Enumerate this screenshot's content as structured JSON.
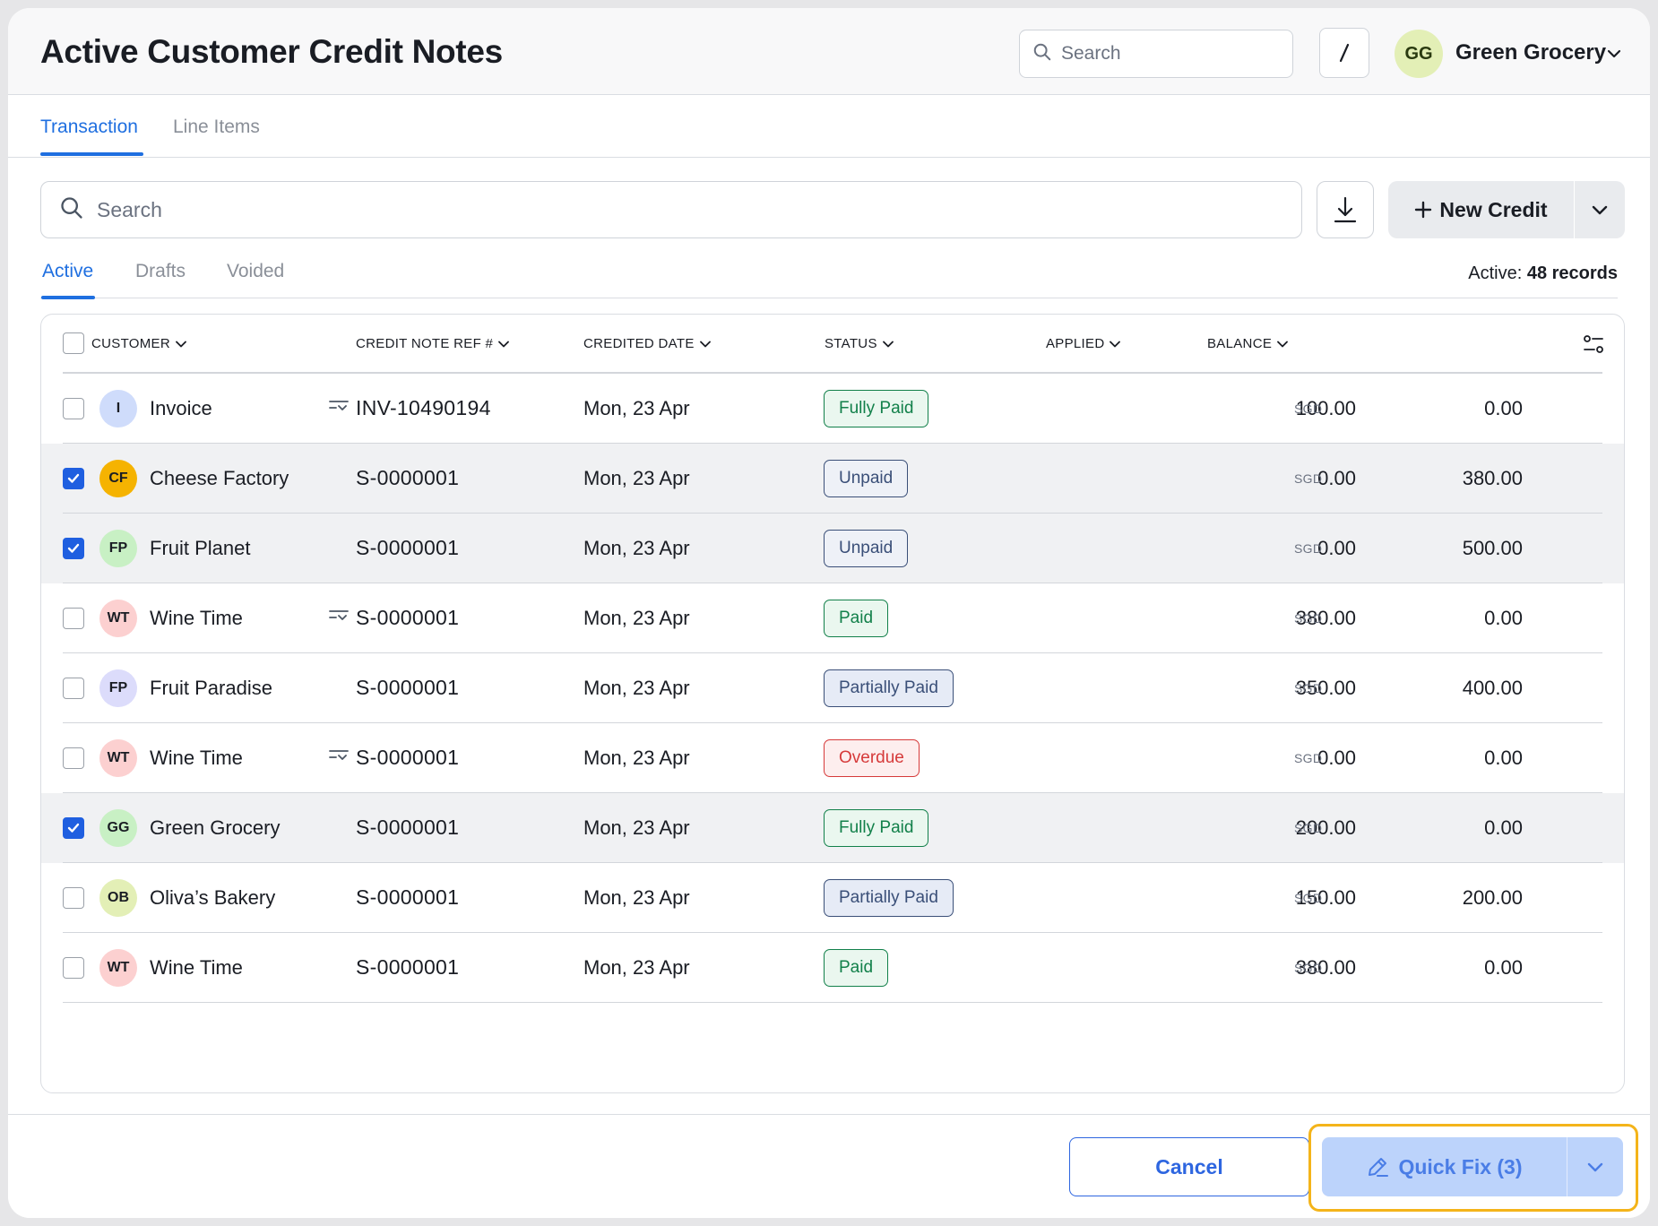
{
  "header": {
    "title": "Active Customer Credit Notes",
    "search_placeholder": "Search",
    "shortcut_label": "/",
    "org_initials": "GG",
    "org_name": "Green Grocery"
  },
  "main_tabs": [
    {
      "label": "Transaction",
      "active": true
    },
    {
      "label": "Line Items",
      "active": false
    }
  ],
  "toolbar": {
    "search_placeholder": "Search",
    "new_credit_label": "New Credit"
  },
  "sub_tabs": [
    {
      "label": "Active",
      "active": true
    },
    {
      "label": "Drafts",
      "active": false
    },
    {
      "label": "Voided",
      "active": false
    }
  ],
  "records": {
    "label": "Active:",
    "count": "48 records"
  },
  "table": {
    "columns": [
      "CUSTOMER",
      "CREDIT NOTE REF #",
      "CREDITED DATE",
      "STATUS",
      "APPLIED",
      "BALANCE"
    ],
    "rows": [
      {
        "initials": "I",
        "customer": "Invoice",
        "ref": "INV-10490194",
        "date": "Mon, 23 Apr",
        "status": "Fully Paid",
        "applied": "100.00",
        "balance": "0.00",
        "currency": "SGD",
        "checked": false,
        "flow": true
      },
      {
        "initials": "CF",
        "customer": "Cheese Factory",
        "ref": "S-0000001",
        "date": "Mon, 23 Apr",
        "status": "Unpaid",
        "applied": "0.00",
        "balance": "380.00",
        "currency": "SGD",
        "checked": true,
        "flow": false
      },
      {
        "initials": "FP",
        "customer": "Fruit Planet",
        "ref": "S-0000001",
        "date": "Mon, 23 Apr",
        "status": "Unpaid",
        "applied": "0.00",
        "balance": "500.00",
        "currency": "SGD",
        "checked": true,
        "flow": false
      },
      {
        "initials": "WT",
        "customer": "Wine Time",
        "ref": "S-0000001",
        "date": "Mon, 23 Apr",
        "status": "Paid",
        "applied": "380.00",
        "balance": "0.00",
        "currency": "SGD",
        "checked": false,
        "flow": true
      },
      {
        "initials": "FP",
        "customer": "Fruit Paradise",
        "ref": "S-0000001",
        "date": "Mon, 23 Apr",
        "status": "Partially Paid",
        "applied": "350.00",
        "balance": "400.00",
        "currency": "SGD",
        "checked": false,
        "flow": false
      },
      {
        "initials": "WT",
        "customer": "Wine Time",
        "ref": "S-0000001",
        "date": "Mon, 23 Apr",
        "status": "Overdue",
        "applied": "0.00",
        "balance": "0.00",
        "currency": "SGD",
        "checked": false,
        "flow": true
      },
      {
        "initials": "GG",
        "customer": "Green Grocery",
        "ref": "S-0000001",
        "date": "Mon, 23 Apr",
        "status": "Fully Paid",
        "applied": "200.00",
        "balance": "0.00",
        "currency": "SGD",
        "checked": true,
        "flow": false
      },
      {
        "initials": "OB",
        "customer": "Oliva’s Bakery",
        "ref": "S-0000001",
        "date": "Mon, 23 Apr",
        "status": "Partially Paid",
        "applied": "150.00",
        "balance": "200.00",
        "currency": "SGD",
        "checked": false,
        "flow": false
      },
      {
        "initials": "WT",
        "customer": "Wine Time",
        "ref": "S-0000001",
        "date": "Mon, 23 Apr",
        "status": "Paid",
        "applied": "380.00",
        "balance": "0.00",
        "currency": "SGD",
        "checked": false,
        "flow": false
      }
    ]
  },
  "footer": {
    "cancel_label": "Cancel",
    "quick_fix_label": "Quick Fix (3)"
  },
  "colors": {
    "accent": "#1f6fe0",
    "checkbox_checked": "#1f5fe0",
    "status_green": "#12804a",
    "status_navy": "#3a4f78",
    "status_red": "#d63a3a",
    "highlight_outline": "#f4b41a"
  },
  "icons": {
    "top_search": "search-icon",
    "download": "download-icon",
    "new_credit": "plus-icon",
    "columns": "column-settings-icon",
    "quick_fix": "pencil-icon",
    "dropdown": "chevron-down-icon",
    "flow": "linked-flow-icon"
  }
}
